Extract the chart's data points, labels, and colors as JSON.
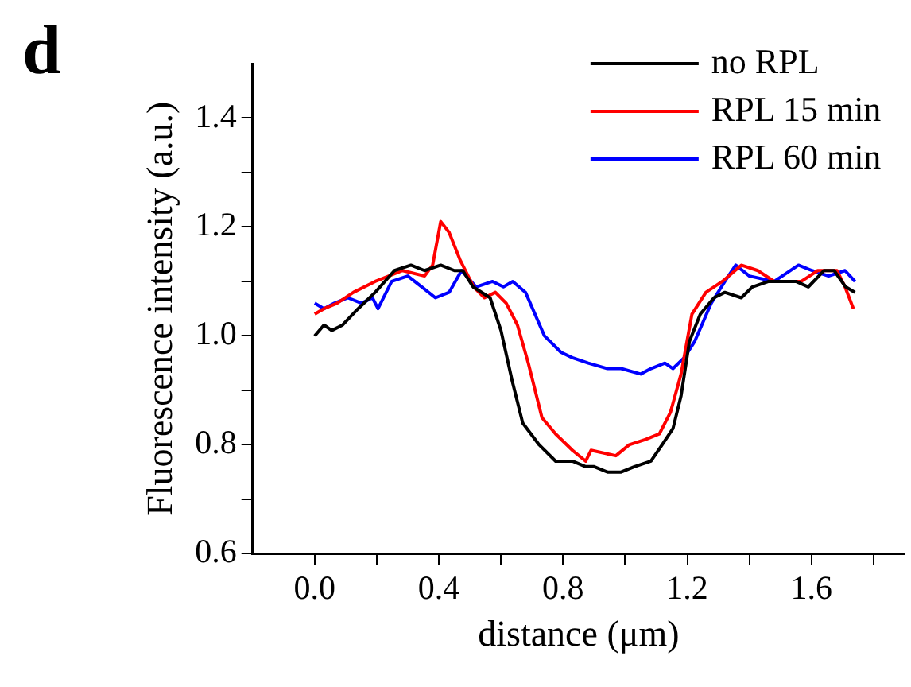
{
  "chart_data": {
    "type": "line",
    "title": "d",
    "xlabel": "distance (μm)",
    "ylabel": "Fluorescence intensity (a.u.)",
    "xlim": [
      -0.2,
      1.9
    ],
    "xticks": [
      {
        "value": 0,
        "label": "0.0"
      },
      {
        "value": 0.2,
        "label": null
      },
      0.4,
      {
        "value": 0.6,
        "label": null
      },
      0.8,
      {
        "value": 1.0,
        "label": null
      },
      1.2,
      {
        "value": 1.4,
        "label": null
      },
      1.6,
      {
        "value": 1.8,
        "label": null
      }
    ],
    "ylim": [
      0.6,
      1.5
    ],
    "yticks": [
      0.6,
      {
        "value": 0.7,
        "label": null
      },
      0.8,
      {
        "value": 0.9,
        "label": null
      },
      {
        "value": 1,
        "label": "1.0"
      },
      {
        "value": 1.1,
        "label": null
      },
      1.2,
      {
        "value": 1.3,
        "label": null
      },
      1.4
    ],
    "grid": false,
    "legend": "top right",
    "marker": "none",
    "line_style": "solid",
    "series": [
      {
        "name": "no RPL",
        "color": "#000000",
        "x": [
          0,
          0.03,
          0.055,
          0.09,
          0.14,
          0.195,
          0.257,
          0.31,
          0.354,
          0.406,
          0.45,
          0.477,
          0.51,
          0.565,
          0.6,
          0.635,
          0.67,
          0.723,
          0.776,
          0.83,
          0.873,
          0.9,
          0.943,
          0.987,
          1.03,
          1.083,
          1.119,
          1.154,
          1.18,
          1.207,
          1.242,
          1.286,
          1.321,
          1.374,
          1.41,
          1.462,
          1.55,
          1.59,
          1.64,
          1.673,
          1.71,
          1.74
        ],
        "values": [
          1.0,
          1.02,
          1.01,
          1.02,
          1.05,
          1.08,
          1.12,
          1.13,
          1.12,
          1.13,
          1.12,
          1.12,
          1.09,
          1.07,
          1.01,
          0.92,
          0.84,
          0.8,
          0.77,
          0.77,
          0.76,
          0.76,
          0.75,
          0.75,
          0.76,
          0.77,
          0.8,
          0.83,
          0.89,
          0.99,
          1.04,
          1.07,
          1.08,
          1.07,
          1.09,
          1.1,
          1.1,
          1.09,
          1.12,
          1.12,
          1.09,
          1.08
        ]
      },
      {
        "name": "RPL 15 min",
        "color": "#ff0000",
        "x": [
          0,
          0.03,
          0.072,
          0.125,
          0.195,
          0.283,
          0.354,
          0.38,
          0.406,
          0.433,
          0.468,
          0.512,
          0.547,
          0.582,
          0.617,
          0.653,
          0.688,
          0.732,
          0.776,
          0.83,
          0.873,
          0.89,
          0.97,
          1.013,
          1.066,
          1.11,
          1.146,
          1.18,
          1.215,
          1.26,
          1.313,
          1.374,
          1.427,
          1.48,
          1.567,
          1.62,
          1.682,
          1.708,
          1.735
        ],
        "values": [
          1.04,
          1.05,
          1.06,
          1.08,
          1.1,
          1.12,
          1.11,
          1.13,
          1.21,
          1.19,
          1.14,
          1.09,
          1.07,
          1.08,
          1.06,
          1.02,
          0.95,
          0.85,
          0.82,
          0.79,
          0.77,
          0.79,
          0.78,
          0.8,
          0.81,
          0.82,
          0.86,
          0.93,
          1.04,
          1.08,
          1.1,
          1.13,
          1.12,
          1.1,
          1.1,
          1.12,
          1.12,
          1.09,
          1.05
        ]
      },
      {
        "name": "RPL 60 min",
        "color": "#0000ff",
        "x": [
          0,
          0.03,
          0.063,
          0.107,
          0.151,
          0.186,
          0.204,
          0.248,
          0.3,
          0.345,
          0.389,
          0.433,
          0.473,
          0.52,
          0.573,
          0.608,
          0.638,
          0.679,
          0.74,
          0.793,
          0.83,
          0.881,
          0.943,
          0.987,
          1.05,
          1.083,
          1.128,
          1.154,
          1.19,
          1.224,
          1.277,
          1.321,
          1.356,
          1.4,
          1.48,
          1.558,
          1.602,
          1.655,
          1.708,
          1.74
        ],
        "values": [
          1.06,
          1.05,
          1.06,
          1.07,
          1.06,
          1.07,
          1.05,
          1.1,
          1.11,
          1.09,
          1.07,
          1.08,
          1.12,
          1.09,
          1.1,
          1.09,
          1.1,
          1.08,
          1.0,
          0.97,
          0.96,
          0.95,
          0.94,
          0.94,
          0.93,
          0.94,
          0.95,
          0.94,
          0.96,
          0.99,
          1.06,
          1.1,
          1.13,
          1.11,
          1.1,
          1.13,
          1.12,
          1.11,
          1.12,
          1.1
        ]
      }
    ]
  }
}
